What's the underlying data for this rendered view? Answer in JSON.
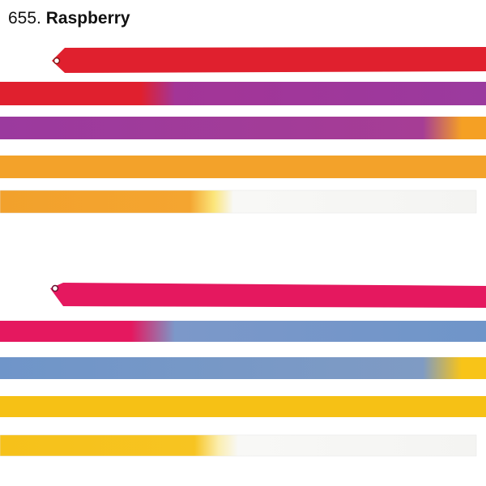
{
  "title": {
    "number": "655.",
    "name": "Raspberry"
  }
}
